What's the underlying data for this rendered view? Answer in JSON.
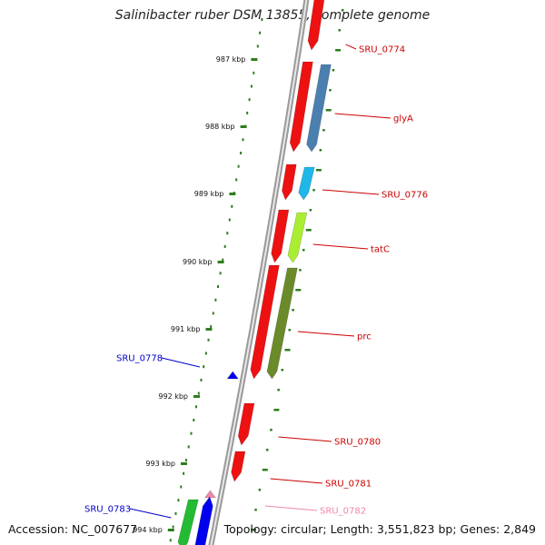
{
  "title": "Salinibacter ruber DSM 13855, complete genome",
  "footer": {
    "accession": "Accession: NC_007677",
    "summary": "Topology: circular; Length: 3,551,823 bp; Genes: 2,849"
  },
  "colors": {
    "backbone": "#7f7f7f",
    "tick": "#2e7d1e",
    "forward_label": "#cc0000",
    "reverse_label": "#0000cc",
    "rna_label": "#ee88aa"
  },
  "scale_ticks": [
    "987 kbp",
    "988 kbp",
    "989 kbp",
    "990 kbp",
    "991 kbp",
    "992 kbp",
    "993 kbp",
    "994 kbp"
  ],
  "genes": [
    {
      "label": "SRU_0774",
      "strand": "forward",
      "color": "#ee1111"
    },
    {
      "label": "glyA",
      "strand": "forward",
      "color": "#ee1111"
    },
    {
      "label": "SRU_0776",
      "strand": "forward",
      "color": "#ee1111"
    },
    {
      "label": "tatC",
      "strand": "forward",
      "color": "#ee1111"
    },
    {
      "label": "prc",
      "strand": "forward",
      "color": "#ee1111"
    },
    {
      "label": "SRU_0778",
      "strand": "reverse",
      "color": "#0000ee"
    },
    {
      "label": "SRU_0780",
      "strand": "forward",
      "color": "#ee1111"
    },
    {
      "label": "SRU_0781",
      "strand": "forward",
      "color": "#ee1111"
    },
    {
      "label": "SRU_0782",
      "strand": "reverse",
      "color": "#ee88aa"
    },
    {
      "label": "SRU_0783",
      "strand": "reverse",
      "color": "#0000ee"
    }
  ],
  "category_bands": [
    {
      "gene": "glyA",
      "color": "#4a7fb0"
    },
    {
      "gene": "SRU_0776",
      "color": "#1fb6e8"
    },
    {
      "gene": "tatC",
      "color": "#aaee33"
    },
    {
      "gene": "prc",
      "color": "#6b8a2a"
    },
    {
      "gene": "SRU_0783",
      "color": "#22bb33"
    }
  ]
}
